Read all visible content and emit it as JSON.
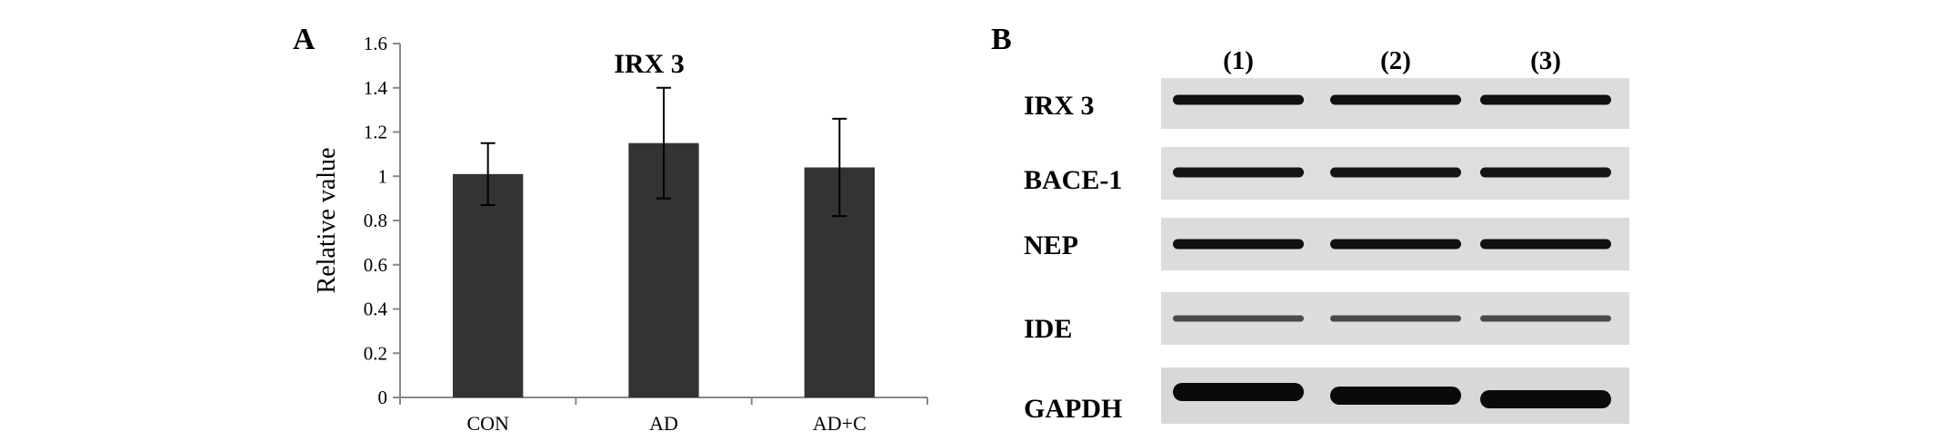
{
  "panels": {
    "a_letter": "A",
    "b_letter": "B"
  },
  "chart_data": {
    "type": "bar",
    "title": "IRX 3",
    "xlabel": "",
    "ylabel": "Relative  value",
    "categories": [
      "CON",
      "AD",
      "AD+C"
    ],
    "values": [
      1.01,
      1.15,
      1.04
    ],
    "error": [
      0.14,
      0.25,
      0.22
    ],
    "ylim": [
      0,
      1.6
    ],
    "yticks": [
      "0",
      "0.2",
      "0.4",
      "0.6",
      "0.8",
      "1",
      "1.2",
      "1.4",
      "1.6"
    ],
    "bar_color": "#333333",
    "grid": false
  },
  "blot": {
    "lanes": [
      "(1)",
      "(2)",
      "(3)"
    ],
    "proteins": [
      {
        "name": "IRX 3",
        "band_color": "#111111",
        "strength": "strong"
      },
      {
        "name": "BACE-1",
        "band_color": "#151515",
        "strength": "strong"
      },
      {
        "name": "NEP",
        "band_color": "#111111",
        "strength": "strong"
      },
      {
        "name": "IDE",
        "band_color": "#4a4a4a",
        "strength": "weak"
      },
      {
        "name": "GAPDH",
        "band_color": "#0a0a0a",
        "strength": "very strong"
      }
    ],
    "background_color": "#dcdcdc"
  }
}
